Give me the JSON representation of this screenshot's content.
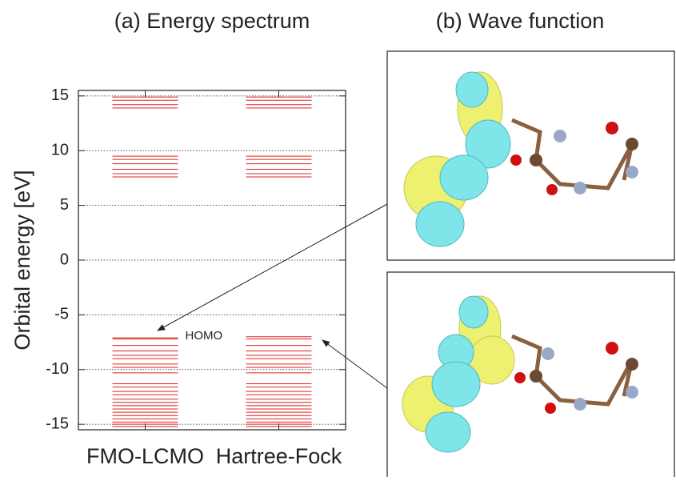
{
  "chart_data": {
    "type": "levels",
    "title": "(a) Energy spectrum",
    "ylabel": "Orbital energy [eV]",
    "categories": [
      "FMO-LCMO",
      "Hartree-Fock"
    ],
    "levels": [
      [
        14.9,
        14.6,
        14.2,
        13.9,
        9.5,
        9.2,
        8.8,
        8.3,
        7.9,
        7.6,
        -7.1,
        -7.2,
        -7.8,
        -8.3,
        -8.7,
        -9.0,
        -9.5,
        -9.8,
        -10.3,
        -11.3,
        -11.6,
        -12.0,
        -12.3,
        -12.7,
        -13.0,
        -13.3,
        -13.6,
        -13.9,
        -14.2,
        -14.5,
        -14.8,
        -15.0,
        -15.2
      ],
      [
        14.9,
        14.6,
        14.2,
        13.9,
        9.5,
        9.2,
        8.8,
        8.3,
        7.9,
        7.6,
        -7.0,
        -7.2,
        -7.8,
        -8.3,
        -8.7,
        -9.0,
        -9.5,
        -9.8,
        -10.3,
        -11.3,
        -11.6,
        -12.0,
        -12.3,
        -12.7,
        -13.0,
        -13.3,
        -13.6,
        -13.9,
        -14.2,
        -14.5,
        -14.8,
        -15.0,
        -15.2
      ]
    ],
    "color": "#e02020",
    "annotation": "HOMO",
    "ylim": [
      -15.5,
      15.5
    ],
    "yticks": [
      -15,
      -10,
      -5,
      0,
      5,
      10,
      15
    ],
    "grid": true
  },
  "wave_function": {
    "title": "(b) Wave function"
  }
}
